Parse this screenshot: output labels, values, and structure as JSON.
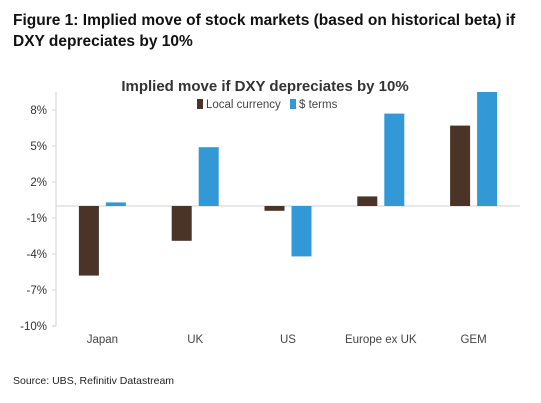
{
  "figure": {
    "title": "Figure 1: Implied move of stock markets (based on historical beta) if DXY depreciates by 10%",
    "source": "Source: UBS, Refinitiv Datastream"
  },
  "colors": {
    "local_currency": "#4a3428",
    "usd_terms": "#3399d6",
    "axis": "#d0d0d0"
  },
  "chart_data": {
    "type": "bar",
    "title": "Implied move if DXY depreciates by 10%",
    "xlabel": "",
    "ylabel": "",
    "categories": [
      "Japan",
      "UK",
      "US",
      "Europe ex UK",
      "GEM"
    ],
    "series": [
      {
        "name": "Local currency",
        "values": [
          -5.8,
          -2.9,
          -0.4,
          0.8,
          6.7
        ]
      },
      {
        "name": "$ terms",
        "values": [
          0.3,
          4.9,
          -4.2,
          7.7,
          9.5
        ]
      }
    ],
    "ylim": [
      -10,
      9
    ],
    "yticks": [
      8,
      5,
      2,
      -1,
      -4,
      -7,
      -10
    ],
    "ytick_labels": [
      "8%",
      "5%",
      "2%",
      "-1%",
      "-4%",
      "-7%",
      "-10%"
    ],
    "legend_position": "top-center",
    "grid": false
  }
}
